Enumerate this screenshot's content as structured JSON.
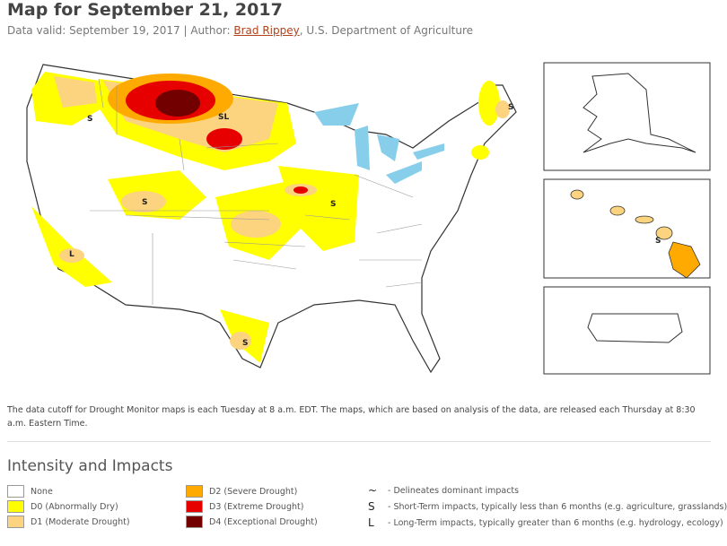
{
  "header": {
    "title": "Map for September 21, 2017",
    "byline": [
      "Data valid: September 19, 2017 | Author:",
      "Brad Rippey",
      ", U.S. Department of Agriculture"
    ]
  },
  "map": {
    "labels": [
      "S",
      "SL",
      "S",
      "S",
      "L",
      "S",
      "S",
      "S"
    ]
  },
  "note": "The data cutoff for Drought Monitor maps is each Tuesday at 8 a.m. EDT. The maps, which are based on analysis of the data, are released each Thursday at 8:30 a.m. Eastern Time.",
  "legend": {
    "title": "Intensity and Impacts",
    "items": [
      {
        "label": "None",
        "color": "#ffffff"
      },
      {
        "label": "D0 (Abnormally Dry)",
        "color": "#ffff00"
      },
      {
        "label": "D1 (Moderate Drought)",
        "color": "#fcd37f"
      },
      {
        "label": "D2 (Severe Drought)",
        "color": "#ffaa00"
      },
      {
        "label": "D3 (Extreme Drought)",
        "color": "#e60000"
      },
      {
        "label": "D4 (Exceptional Drought)",
        "color": "#730000"
      }
    ],
    "impacts": [
      {
        "symbol": "~",
        "text": "- Delineates dominant impacts"
      },
      {
        "symbol": "S",
        "text": "- Short-Term impacts, typically less than 6 months (e.g. agriculture, grasslands)"
      },
      {
        "symbol": "L",
        "text": "- Long-Term impacts, typically greater than 6 months (e.g. hydrology, ecology)"
      }
    ]
  }
}
